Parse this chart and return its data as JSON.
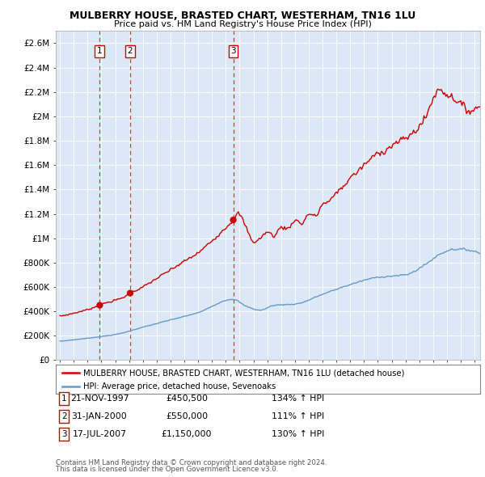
{
  "title": "MULBERRY HOUSE, BRASTED CHART, WESTERHAM, TN16 1LU",
  "subtitle": "Price paid vs. HM Land Registry's House Price Index (HPI)",
  "ylim": [
    0,
    2700000
  ],
  "yticks": [
    0,
    200000,
    400000,
    600000,
    800000,
    1000000,
    1200000,
    1400000,
    1600000,
    1800000,
    2000000,
    2200000,
    2400000,
    2600000
  ],
  "ytick_labels": [
    "£0",
    "£200K",
    "£400K",
    "£600K",
    "£800K",
    "£1M",
    "£1.2M",
    "£1.4M",
    "£1.6M",
    "£1.8M",
    "£2M",
    "£2.2M",
    "£2.4M",
    "£2.6M"
  ],
  "legend_line1": "MULBERRY HOUSE, BRASTED CHART, WESTERHAM, TN16 1LU (detached house)",
  "legend_line2": "HPI: Average price, detached house, Sevenoaks",
  "sale_color": "#cc0000",
  "hpi_color": "#6699cc",
  "transactions": [
    {
      "num": 1,
      "date": "21-NOV-1997",
      "price": 450500,
      "hpi_pct": "134% ↑ HPI",
      "x": 1997.88
    },
    {
      "num": 2,
      "date": "31-JAN-2000",
      "price": 550000,
      "hpi_pct": "111% ↑ HPI",
      "x": 2000.08
    },
    {
      "num": 3,
      "date": "17-JUL-2007",
      "price": 1150000,
      "hpi_pct": "130% ↑ HPI",
      "x": 2007.54
    }
  ],
  "footer_line1": "Contains HM Land Registry data © Crown copyright and database right 2024.",
  "footer_line2": "This data is licensed under the Open Government Licence v3.0.",
  "background_color": "#ffffff",
  "plot_bg_color": "#dce8f5",
  "grid_color": "#ffffff"
}
